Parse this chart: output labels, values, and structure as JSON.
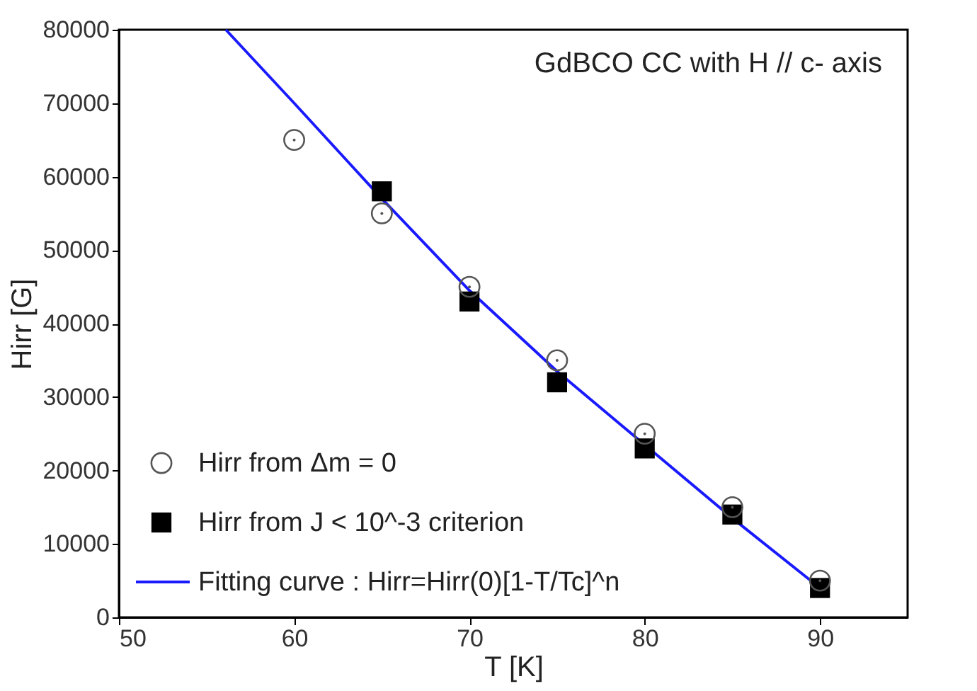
{
  "chart_data": {
    "type": "scatter",
    "xlabel": "T [K]",
    "ylabel": "Hirr [G]",
    "xlim": [
      50,
      95
    ],
    "xticks": [
      50,
      60,
      70,
      80,
      90
    ],
    "ylim": [
      0,
      80000
    ],
    "yticks": [
      0,
      10000,
      20000,
      30000,
      40000,
      50000,
      60000,
      70000,
      80000
    ],
    "grid": false,
    "legend": "bottom left",
    "annotations": [
      "GdBCO CC  with H // c- axis"
    ],
    "series": [
      {
        "name": "Hirr from Δm = 0",
        "marker": "circle",
        "color": "#555555",
        "x": [
          60,
          65,
          70,
          75,
          80,
          85,
          90
        ],
        "values": [
          65000,
          55000,
          45000,
          35000,
          25000,
          15000,
          5000
        ]
      },
      {
        "name": "Hirr from J < 10^-3 criterion",
        "marker": "square",
        "color": "#000000",
        "x": [
          65,
          70,
          75,
          80,
          85,
          90
        ],
        "values": [
          58000,
          43000,
          32000,
          23000,
          14000,
          4000
        ]
      },
      {
        "name": "Fitting curve : Hirr=Hirr(0)[1-T/Tc]^n",
        "type": "line",
        "marker": "none",
        "line_style": "solid",
        "color": "#1a1aff",
        "x": [
          56.1,
          60,
          65,
          70,
          75,
          80,
          85,
          90
        ],
        "values": [
          80000,
          70000,
          57000,
          44500,
          33500,
          23500,
          13500,
          4000
        ]
      }
    ]
  }
}
